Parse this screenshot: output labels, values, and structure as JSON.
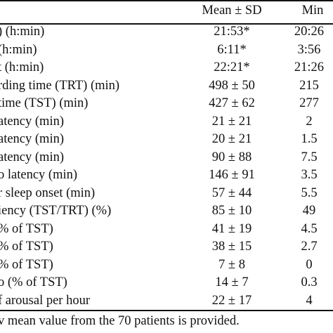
{
  "table": {
    "headers": {
      "mean_sd": "Mean ± SD",
      "min": "Min"
    },
    "rows": [
      {
        "param": ") (h:min)",
        "mean": "21:53*",
        "min": "20:26"
      },
      {
        "param": "(h:min)",
        "mean": "6:11*",
        "min": "3:56"
      },
      {
        "param": "t (h:min)",
        "mean": "22:21*",
        "min": "21:26"
      },
      {
        "param": "rding time (TRT) (min)",
        "mean": "498 ± 50",
        "min": "215"
      },
      {
        "param": "time (TST) (min)",
        "mean": "427 ± 62",
        "min": "277"
      },
      {
        "param": "atency (min)",
        "mean": "21 ± 21",
        "min": "2"
      },
      {
        "param": "atency (min)",
        "mean": "20 ± 21",
        "min": "1.5"
      },
      {
        "param": "atency (min)",
        "mean": "90 ± 88",
        "min": "7.5"
      },
      {
        "param": "o latency (min)",
        "mean": "146 ± 91",
        "min": "3.5"
      },
      {
        "param": "r sleep onset (min)",
        "mean": "57 ± 44",
        "min": "5.5"
      },
      {
        "param": "iency (TST/TRT) (%)",
        "mean": "85 ± 10",
        "min": "49"
      },
      {
        "param": "% of TST)",
        "mean": "41 ± 19",
        "min": "4.5"
      },
      {
        "param": "% of TST)",
        "mean": "38 ± 15",
        "min": "2.7"
      },
      {
        "param": "% of TST)",
        "mean": "7 ± 8",
        "min": "0"
      },
      {
        "param": "o (% of TST)",
        "mean": "14 ± 7",
        "min": "0.3"
      },
      {
        "param": "f arousal per hour",
        "mean": "22 ± 17",
        "min": "4"
      }
    ]
  },
  "footnote": "v mean value from the 70 patients is provided."
}
